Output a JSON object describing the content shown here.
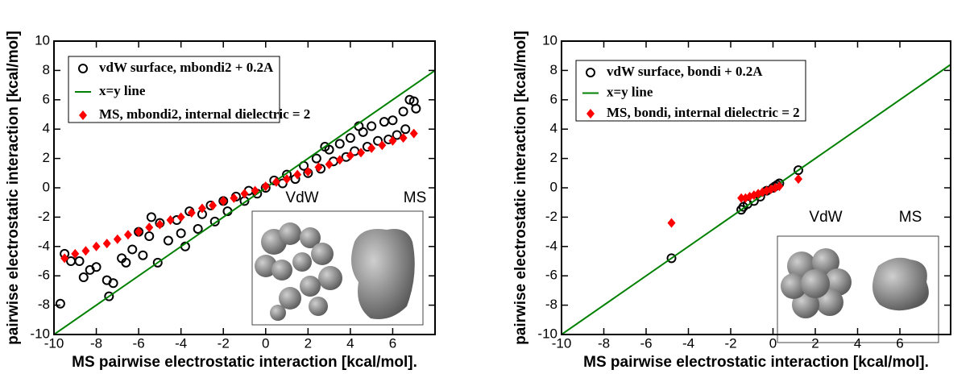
{
  "chart_data": [
    {
      "type": "scatter",
      "xlabel": "MS pairwise electrostatic interaction [kcal/mol].",
      "ylabel": "pairwise electrostatic interaction [kcal/mol]",
      "xlim": [
        -10,
        8
      ],
      "ylim": [
        -10,
        10
      ],
      "xticks": [
        -10,
        -8,
        -6,
        -4,
        -2,
        0,
        2,
        4,
        6
      ],
      "yticks": [
        -10,
        -8,
        -6,
        -4,
        -2,
        0,
        2,
        4,
        6,
        8,
        10
      ],
      "legend": "upper left",
      "inset_labels": [
        "VdW",
        "MS"
      ],
      "series": [
        {
          "name": "vdW surface, mbondi2 + 0.2A",
          "color": "#000000",
          "marker": "circle",
          "x": [
            -9.7,
            -9.5,
            -9.2,
            -8.6,
            -8.3,
            -8.0,
            -7.5,
            -7.2,
            -7.4,
            -6.8,
            -6.6,
            -6.3,
            -6.0,
            -5.8,
            -5.5,
            -5.1,
            -5.0,
            -4.6,
            -4.2,
            -4.0,
            -3.6,
            -3.2,
            -3.0,
            -2.6,
            -2.4,
            -2.0,
            -1.8,
            -1.4,
            -1.0,
            -0.8,
            -0.4,
            0,
            0.4,
            0.8,
            1.0,
            1.4,
            1.8,
            2.0,
            2.4,
            2.6,
            3.0,
            3.2,
            3.5,
            3.8,
            4.0,
            4.2,
            4.6,
            4.8,
            5.0,
            5.3,
            5.6,
            5.8,
            6.0,
            6.2,
            6.5,
            6.8,
            7.0,
            7.1,
            6.6,
            -8.8,
            -5.4,
            -3.8,
            2.8,
            4.4
          ],
          "values": [
            -7.9,
            -4.5,
            -5.0,
            -6.1,
            -5.6,
            -5.4,
            -6.3,
            -6.5,
            -7.4,
            -4.8,
            -5.1,
            -4.2,
            -3.0,
            -4.6,
            -3.3,
            -5.1,
            -2.4,
            -3.6,
            -2.2,
            -3.1,
            -1.6,
            -2.8,
            -1.8,
            -1.2,
            -2.3,
            -0.9,
            -1.6,
            -0.6,
            -0.9,
            -0.2,
            -0.4,
            0,
            0.5,
            0.3,
            0.9,
            0.6,
            1.5,
            1.0,
            2.0,
            1.3,
            2.6,
            1.8,
            3.0,
            2.1,
            3.4,
            2.5,
            3.8,
            2.8,
            4.2,
            3.2,
            4.5,
            3.3,
            4.6,
            3.6,
            5.2,
            6.0,
            5.9,
            5.4,
            4.0,
            -5.0,
            -2.0,
            -4.0,
            2.8,
            4.2
          ]
        },
        {
          "name": "x=y line",
          "color": "#008000",
          "marker": "line",
          "x": [
            -10,
            8
          ],
          "values": [
            -10,
            8
          ]
        },
        {
          "name": "MS, mbondi2, internal dielectric = 2",
          "color": "#ff0000",
          "marker": "diamond",
          "x": [
            -9.5,
            -9,
            -8.5,
            -8,
            -7.5,
            -7,
            -6.5,
            -6,
            -5.5,
            -5,
            -4.5,
            -4,
            -3.5,
            -3,
            -2.5,
            -2,
            -1.5,
            -1,
            -0.5,
            0,
            0.5,
            1,
            1.5,
            2,
            2.5,
            3,
            3.5,
            4,
            4.5,
            5,
            5.5,
            6,
            6.5,
            7
          ],
          "values": [
            -4.8,
            -4.5,
            -4.3,
            -4.0,
            -3.8,
            -3.5,
            -3.2,
            -3.0,
            -2.7,
            -2.5,
            -2.2,
            -2.0,
            -1.7,
            -1.4,
            -1.2,
            -0.9,
            -0.7,
            -0.4,
            -0.2,
            0.1,
            0.4,
            0.6,
            0.9,
            1.1,
            1.4,
            1.6,
            1.9,
            2.2,
            2.4,
            2.7,
            2.9,
            3.2,
            3.4,
            3.7
          ]
        }
      ]
    },
    {
      "type": "scatter",
      "xlabel": "MS pairwise electrostatic interaction [kcal/mol].",
      "ylabel": "pairwise electrostatic interaction [kcal/mol]",
      "xlim": [
        -10,
        8.4
      ],
      "ylim": [
        -10,
        10
      ],
      "xticks": [
        -10,
        -8,
        -6,
        -4,
        -2,
        0,
        2,
        4,
        6
      ],
      "yticks": [
        -10,
        -8,
        -6,
        -4,
        -2,
        0,
        2,
        4,
        6,
        8,
        10
      ],
      "legend": "upper left",
      "inset_labels": [
        "VdW",
        "MS"
      ],
      "series": [
        {
          "name": "vdW surface, bondi + 0.2A",
          "color": "#000000",
          "marker": "circle",
          "x": [
            -4.8,
            -1.5,
            -1.4,
            -1.2,
            -0.9,
            -0.6,
            -0.3,
            0,
            0.1,
            0.2,
            0.3,
            1.2
          ],
          "values": [
            -4.8,
            -1.5,
            -1.3,
            -1.1,
            -0.9,
            -0.6,
            -0.2,
            0,
            0.1,
            0.2,
            0.3,
            1.2
          ]
        },
        {
          "name": "x=y line",
          "color": "#008000",
          "marker": "line",
          "x": [
            -10,
            8.4
          ],
          "values": [
            -10,
            8.4
          ]
        },
        {
          "name": "MS, bondi, internal dielectric = 2",
          "color": "#ff0000",
          "marker": "diamond",
          "x": [
            -4.8,
            -1.5,
            -1.3,
            -1.1,
            -0.9,
            -0.7,
            -0.5,
            -0.3,
            -0.1,
            0.1,
            0.3,
            1.2
          ],
          "values": [
            -2.4,
            -0.7,
            -0.7,
            -0.6,
            -0.5,
            -0.4,
            -0.3,
            -0.2,
            -0.1,
            0,
            0.1,
            0.6
          ]
        }
      ]
    }
  ]
}
